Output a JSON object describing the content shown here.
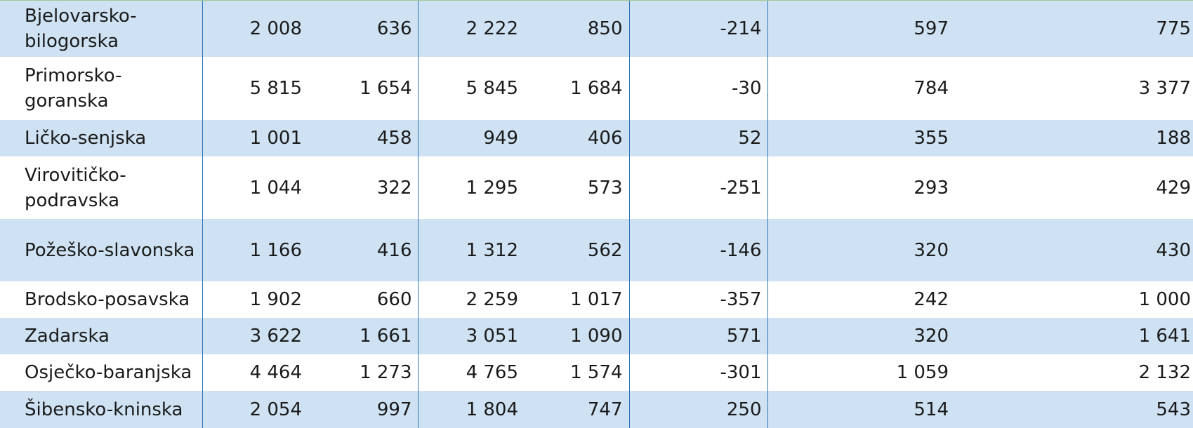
{
  "table": {
    "rows": [
      [
        "Bjelovarsko-bilogorska",
        "2 008",
        "636",
        "2 222",
        "850",
        "-214",
        "597",
        "775"
      ],
      [
        "Primorsko-goranska",
        "5 815",
        "1 654",
        "5 845",
        "1 684",
        "-30",
        "784",
        "3 377"
      ],
      [
        "Ličko-senjska",
        "1 001",
        "458",
        "949",
        "406",
        "52",
        "355",
        "188"
      ],
      [
        "Virovitičko-podravska",
        "1 044",
        "322",
        "1 295",
        "573",
        "-251",
        "293",
        "429"
      ],
      [
        "Požeško-slavonska",
        "1 166",
        "416",
        "1 312",
        "562",
        "-146",
        "320",
        "430"
      ],
      [
        "Brodsko-posavska",
        "1 902",
        "660",
        "2 259",
        "1 017",
        "-357",
        "242",
        "1 000"
      ],
      [
        "Zadarska",
        "3 622",
        "1 661",
        "3 051",
        "1 090",
        "571",
        "320",
        "1 641"
      ],
      [
        "Osječko-baranjska",
        "4 464",
        "1 273",
        "4 765",
        "1 574",
        "-301",
        "1 059",
        "2 132"
      ],
      [
        "Šibensko-kninska",
        "2 054",
        "997",
        "1 804",
        "747",
        "250",
        "514",
        "543"
      ]
    ]
  }
}
